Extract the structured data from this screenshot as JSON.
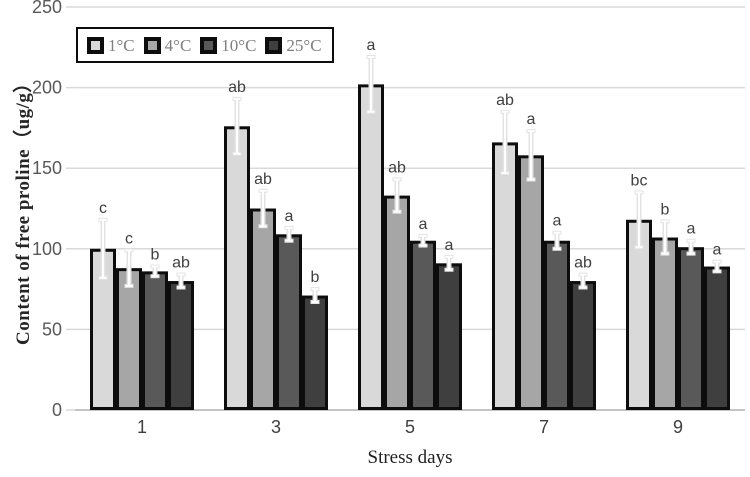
{
  "colors": {
    "background": "#ffffff",
    "bar_border": "#0d0d0d",
    "gridline": "#d9d9d9",
    "axis_line": "#b0b0b0",
    "y_tick_text": "#595959",
    "x_tick_text": "#3f3f3f",
    "sig_label_text": "#3f3f3f",
    "legend_text": "#7f7f7f",
    "error_bar_halo": "#e3e3e3",
    "error_bar_core": "#ffffff"
  },
  "chart_data": {
    "type": "bar",
    "title": "",
    "xlabel": "Stress days",
    "ylabel": "Content of free proline（ug/g）",
    "categories": [
      "1",
      "3",
      "5",
      "7",
      "9"
    ],
    "ylim": [
      0,
      250
    ],
    "ytick_step": 50,
    "grid": true,
    "legend_position": "top-left",
    "series": [
      {
        "name": "1°C",
        "color": "#d9d9d9",
        "values": [
          100,
          176,
          202,
          166,
          118
        ],
        "errors": [
          18,
          17,
          17,
          19,
          17
        ],
        "sig_labels": [
          "c",
          "ab",
          "a",
          "ab",
          "bc"
        ]
      },
      {
        "name": "4°C",
        "color": "#a6a6a6",
        "values": [
          88,
          125,
          133,
          158,
          107
        ],
        "errors": [
          11,
          11,
          10,
          15,
          10
        ],
        "sig_labels": [
          "c",
          "ab",
          "ab",
          "a",
          "b"
        ]
      },
      {
        "name": "10°C",
        "color": "#595959",
        "values": [
          86,
          109,
          105,
          105,
          101
        ],
        "errors": [
          3,
          4,
          3,
          5,
          4
        ],
        "sig_labels": [
          "b",
          "a",
          "a",
          "a",
          "a"
        ]
      },
      {
        "name": "25°C",
        "color": "#3f3f3f",
        "values": [
          80,
          71,
          91,
          80,
          89
        ],
        "errors": [
          4,
          4,
          4,
          4,
          3
        ],
        "sig_labels": [
          "ab",
          "b",
          "a",
          "ab",
          "a"
        ]
      }
    ]
  }
}
